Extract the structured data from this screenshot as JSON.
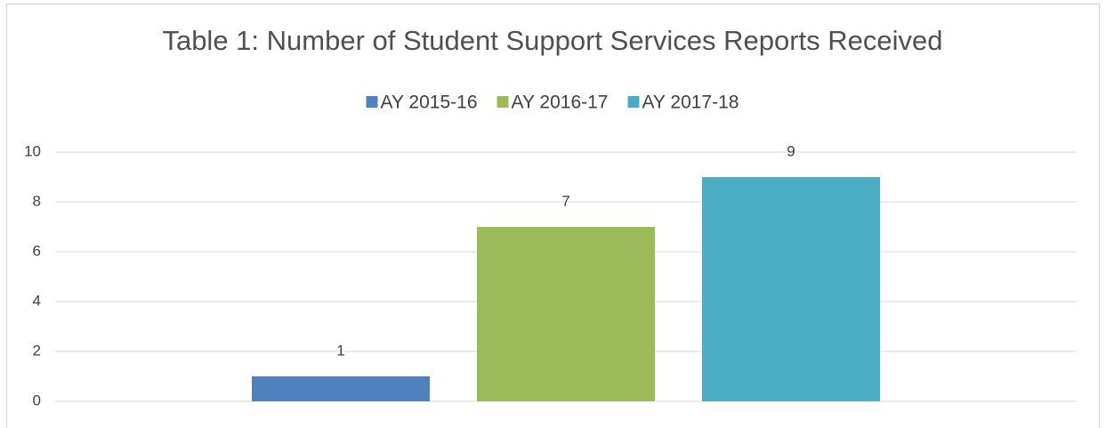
{
  "chart_data": {
    "type": "bar",
    "title": "Table 1: Number of Student Support Services Reports Received",
    "categories": [
      null
    ],
    "series": [
      {
        "name": "AY 2015-16",
        "color": "#4f81bd",
        "values": [
          1
        ]
      },
      {
        "name": "AY 2016-17",
        "color": "#9bbb59",
        "values": [
          7
        ]
      },
      {
        "name": "AY 2017-18",
        "color": "#4bacc6",
        "values": [
          9
        ]
      }
    ],
    "ylim": [
      0,
      10
    ],
    "yticks": [
      0,
      2,
      4,
      6,
      8,
      10
    ],
    "grid": true,
    "legend": "top"
  }
}
